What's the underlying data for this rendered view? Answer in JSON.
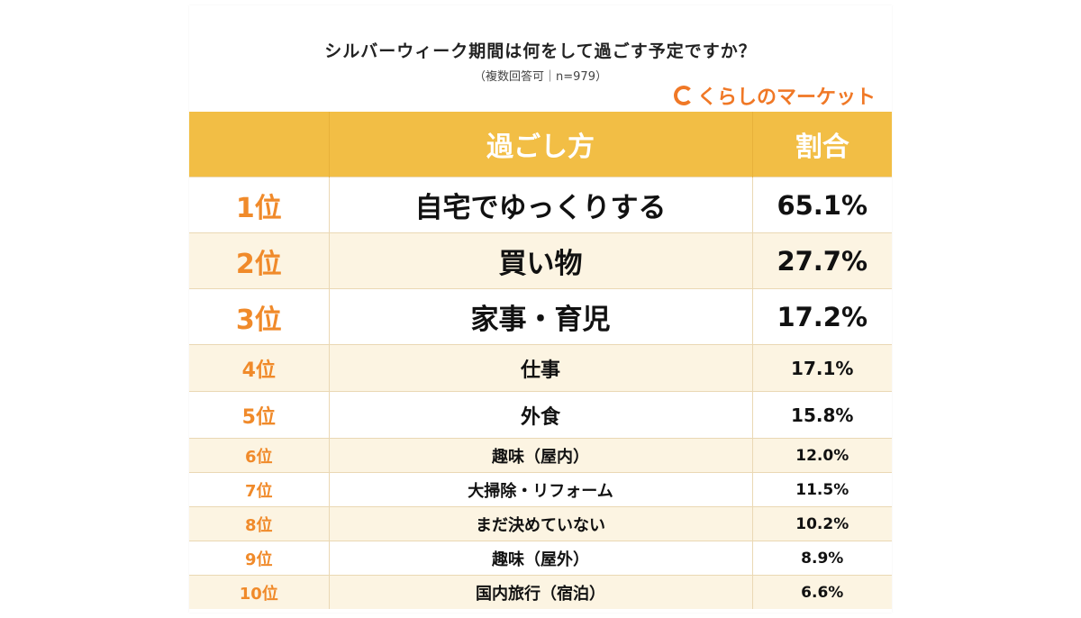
{
  "title": "シルバーウィーク期間は何をして過ごす予定ですか？",
  "subtitle": "（複数回答可｜n=979）",
  "logo": {
    "text": "くらしのマーケット",
    "color": "#f07826"
  },
  "colors": {
    "header": "#f2be45",
    "rank": "#f08a2a",
    "alt_row": "#fcf4e2"
  },
  "table": {
    "headers": [
      "",
      "過ごし方",
      "割合"
    ],
    "rows": [
      {
        "rank": "1位",
        "activity": "自宅でゆっくりする",
        "percent": "65.1%"
      },
      {
        "rank": "2位",
        "activity": "買い物",
        "percent": "27.7%"
      },
      {
        "rank": "3位",
        "activity": "家事・育児",
        "percent": "17.2%"
      },
      {
        "rank": "4位",
        "activity": "仕事",
        "percent": "17.1%"
      },
      {
        "rank": "5位",
        "activity": "外食",
        "percent": "15.8%"
      },
      {
        "rank": "6位",
        "activity": "趣味（屋内）",
        "percent": "12.0%"
      },
      {
        "rank": "7位",
        "activity": "大掃除・リフォーム",
        "percent": "11.5%"
      },
      {
        "rank": "8位",
        "activity": "まだ決めていない",
        "percent": "10.2%"
      },
      {
        "rank": "9位",
        "activity": "趣味（屋外）",
        "percent": "8.9%"
      },
      {
        "rank": "10位",
        "activity": "国内旅行（宿泊）",
        "percent": "6.6%"
      }
    ]
  }
}
